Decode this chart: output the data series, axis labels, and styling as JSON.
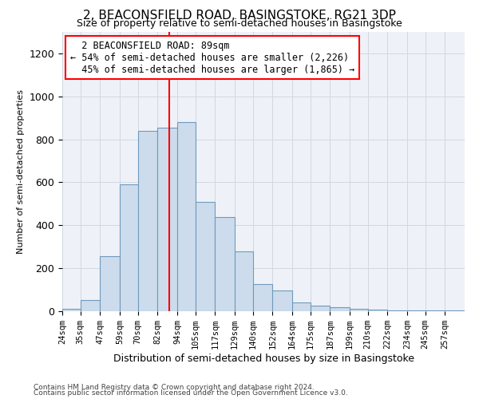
{
  "title": "2, BEACONSFIELD ROAD, BASINGSTOKE, RG21 3DP",
  "subtitle": "Size of property relative to semi-detached houses in Basingstoke",
  "xlabel": "Distribution of semi-detached houses by size in Basingstoke",
  "ylabel": "Number of semi-detached properties",
  "footnote1": "Contains HM Land Registry data © Crown copyright and database right 2024.",
  "footnote2": "Contains public sector information licensed under the Open Government Licence v3.0.",
  "property_label": "2 BEACONSFIELD ROAD: 89sqm",
  "pct_smaller": 54,
  "count_smaller": 2226,
  "pct_larger": 45,
  "count_larger": 1865,
  "bin_labels": [
    "24sqm",
    "35sqm",
    "47sqm",
    "59sqm",
    "70sqm",
    "82sqm",
    "94sqm",
    "105sqm",
    "117sqm",
    "129sqm",
    "140sqm",
    "152sqm",
    "164sqm",
    "175sqm",
    "187sqm",
    "199sqm",
    "210sqm",
    "222sqm",
    "234sqm",
    "245sqm",
    "257sqm"
  ],
  "bin_edges": [
    24,
    35,
    47,
    59,
    70,
    82,
    94,
    105,
    117,
    129,
    140,
    152,
    164,
    175,
    187,
    199,
    210,
    222,
    234,
    245,
    257,
    269
  ],
  "bar_heights": [
    10,
    52,
    255,
    590,
    840,
    855,
    880,
    510,
    440,
    280,
    125,
    95,
    40,
    25,
    20,
    10,
    8,
    5,
    3,
    3,
    3
  ],
  "bar_color": "#ccdcec",
  "bar_edge_color": "#7099bb",
  "vline_x": 89,
  "vline_color": "red",
  "grid_color": "#d0d8e0",
  "bg_color": "#eef2f8",
  "ylim": [
    0,
    1300
  ],
  "yticks": [
    0,
    200,
    400,
    600,
    800,
    1000,
    1200
  ]
}
